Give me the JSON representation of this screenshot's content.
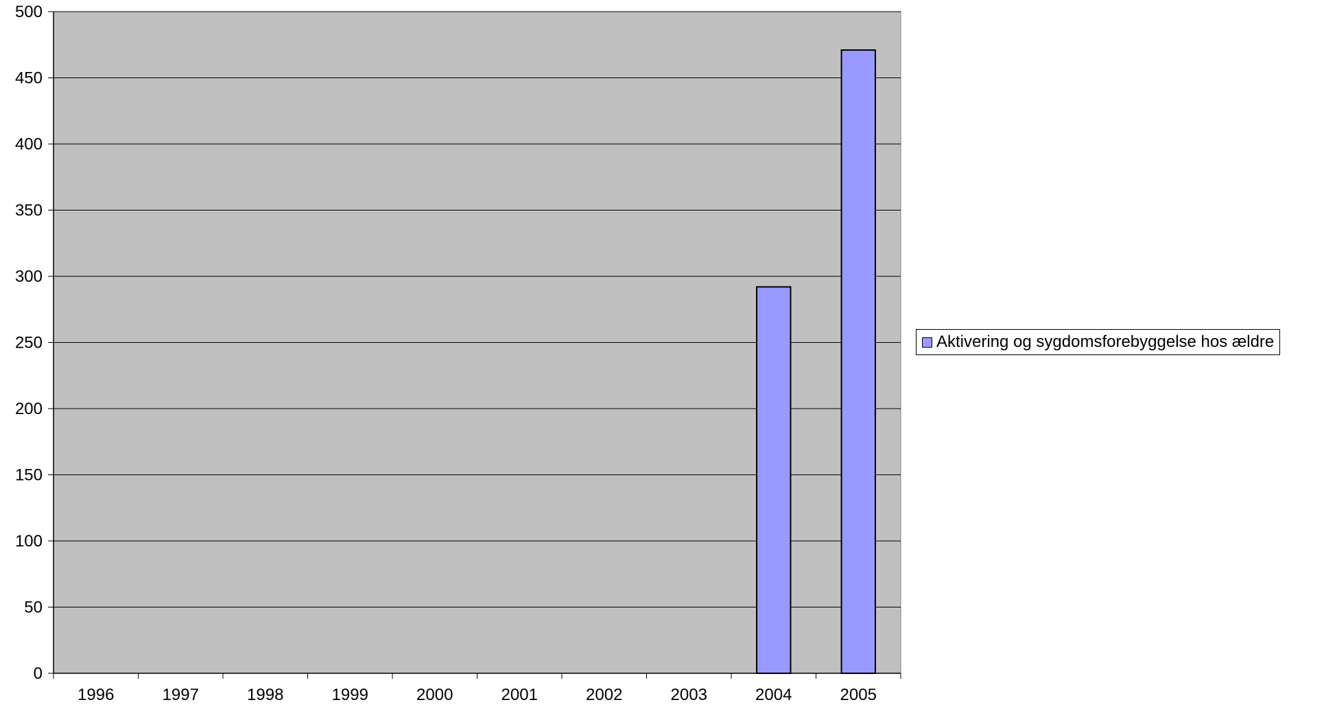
{
  "chart_data": {
    "type": "bar",
    "title": "",
    "xlabel": "",
    "ylabel": "",
    "categories": [
      "1996",
      "1997",
      "1998",
      "1999",
      "2000",
      "2001",
      "2002",
      "2003",
      "2004",
      "2005"
    ],
    "series": [
      {
        "name": "Aktivering og sygdomsforebyggelse hos ældre",
        "values": [
          0,
          0,
          0,
          0,
          0,
          0,
          0,
          0,
          292,
          471
        ],
        "color": "#9999ff"
      }
    ],
    "ylim": [
      0,
      500
    ],
    "yticks": [
      0,
      50,
      100,
      150,
      200,
      250,
      300,
      350,
      400,
      450,
      500
    ],
    "grid": true,
    "plot_background": "#c0c0c0",
    "legend_position": "right"
  }
}
